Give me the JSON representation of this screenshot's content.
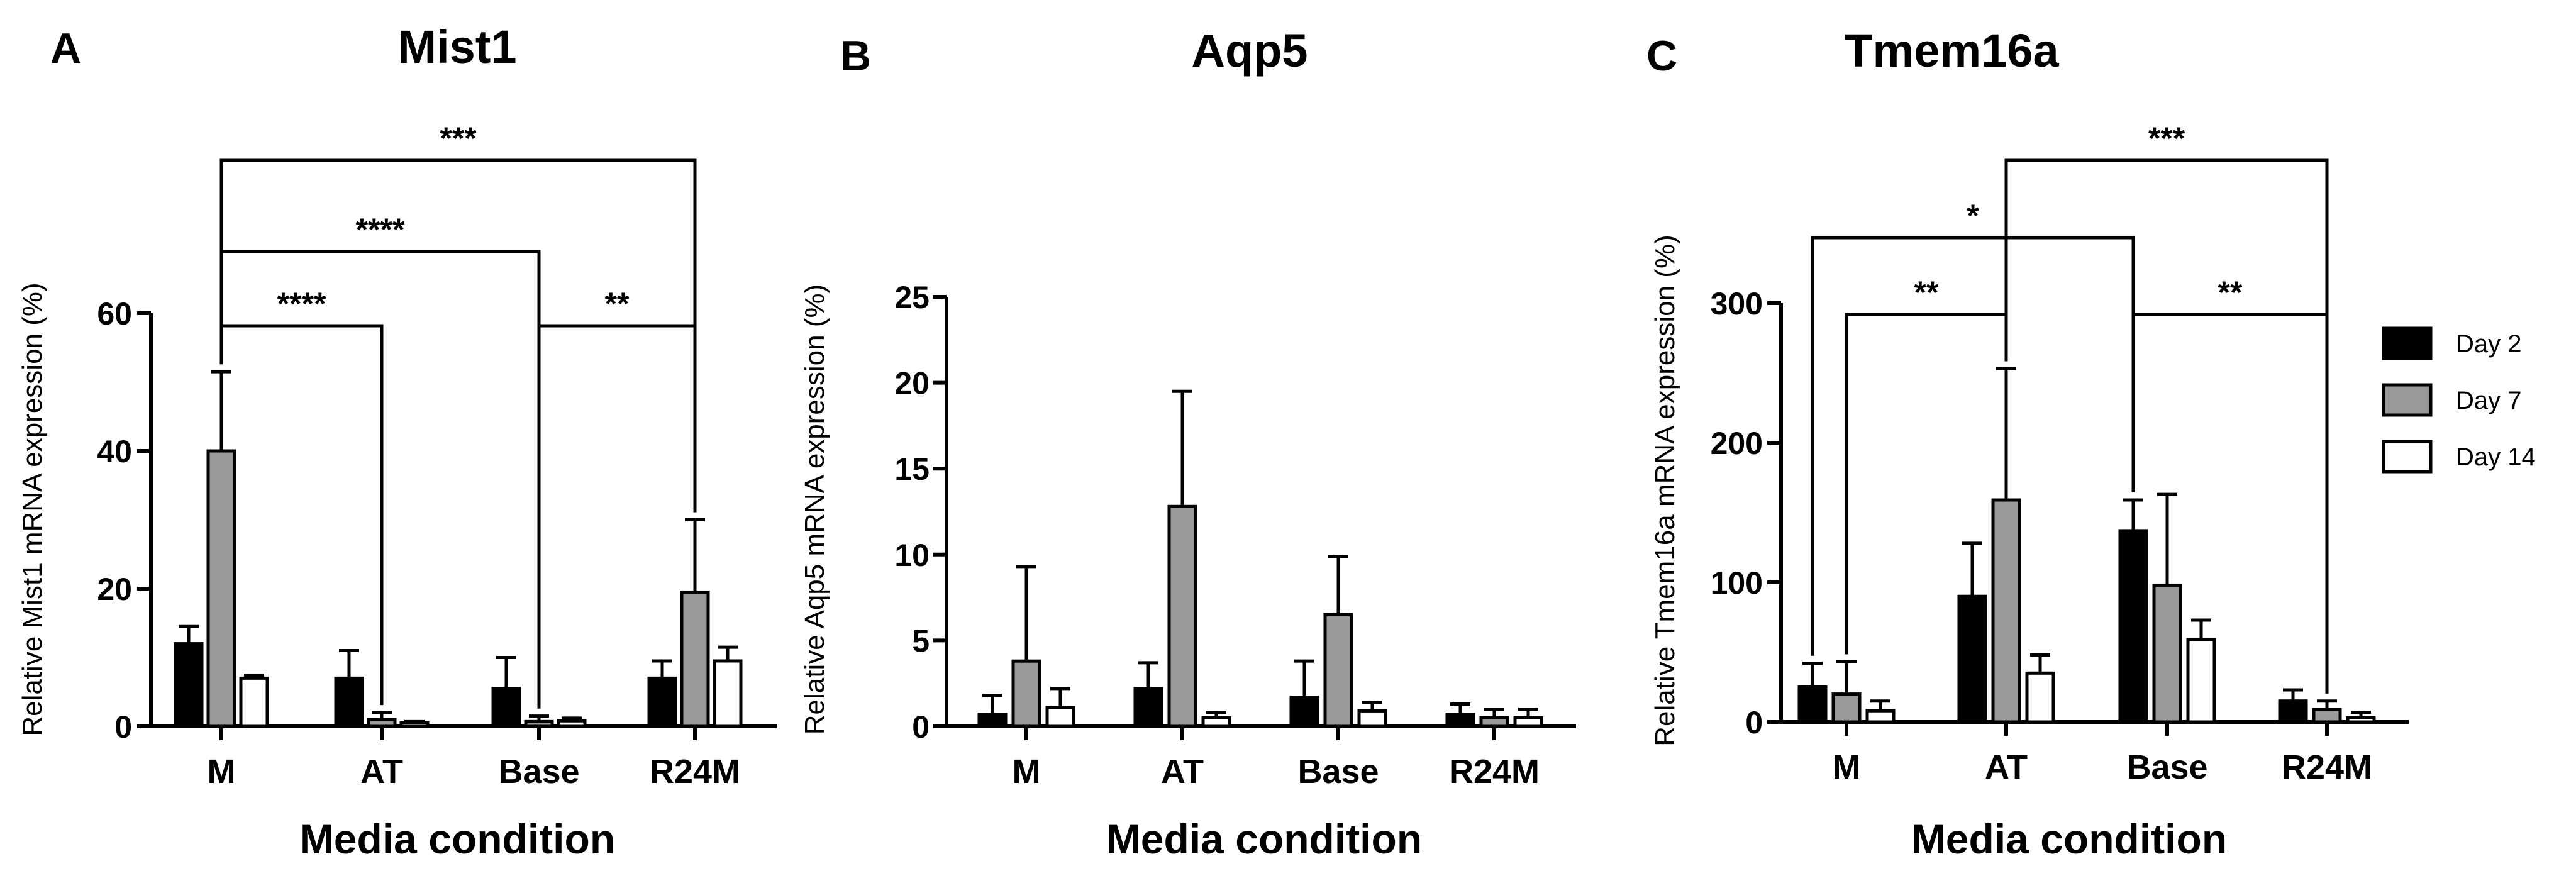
{
  "chart_data": [
    {
      "panel": "A",
      "type": "bar",
      "title": "Mist1",
      "xlabel": "Media condition",
      "ylabel": "Relative Mist1 mRNA expression (%)",
      "categories": [
        "M",
        "AT",
        "Base",
        "R24M"
      ],
      "ylim": [
        0,
        60
      ],
      "yticks": [
        0,
        20,
        40,
        60
      ],
      "series": [
        {
          "name": "Day 2",
          "color": "#000000",
          "values": [
            12,
            7,
            5.5,
            7
          ],
          "errors": [
            2.5,
            4,
            4.5,
            2.5
          ]
        },
        {
          "name": "Day 7",
          "color": "#999999",
          "values": [
            40,
            1,
            0.7,
            19.5
          ],
          "errors": [
            11.5,
            1,
            0.8,
            10.5
          ]
        },
        {
          "name": "Day 14",
          "color": "#ffffff",
          "values": [
            7,
            0.5,
            0.8,
            9.5
          ],
          "errors": [
            0.4,
            0.2,
            0.4,
            2
          ]
        }
      ],
      "annotations": [
        {
          "label": "***",
          "from": [
            0,
            "Day 7"
          ],
          "to": [
            3,
            "Day 7"
          ],
          "level": 1
        },
        {
          "label": "****",
          "from": [
            0,
            "Day 7"
          ],
          "to": [
            2,
            "Day 7"
          ],
          "level": 2
        },
        {
          "label": "****",
          "from": [
            0,
            "Day 7"
          ],
          "to": [
            1,
            "Day 7"
          ],
          "level": 3
        },
        {
          "label": "**",
          "from": [
            2,
            "Day 7"
          ],
          "to": [
            3,
            "Day 7"
          ],
          "level": 3
        }
      ]
    },
    {
      "panel": "B",
      "type": "bar",
      "title": "Aqp5",
      "xlabel": "Media condition",
      "ylabel": "Relative Aqp5 mRNA expression (%)",
      "categories": [
        "M",
        "AT",
        "Base",
        "R24M"
      ],
      "ylim": [
        0,
        25
      ],
      "yticks": [
        0,
        5,
        10,
        15,
        20,
        25
      ],
      "series": [
        {
          "name": "Day 2",
          "color": "#000000",
          "values": [
            0.7,
            2.2,
            1.7,
            0.7
          ],
          "errors": [
            1.1,
            1.5,
            2.1,
            0.6
          ]
        },
        {
          "name": "Day 7",
          "color": "#999999",
          "values": [
            3.8,
            12.8,
            6.5,
            0.5
          ],
          "errors": [
            5.5,
            6.7,
            3.4,
            0.5
          ]
        },
        {
          "name": "Day 14",
          "color": "#ffffff",
          "values": [
            1.1,
            0.5,
            0.9,
            0.5
          ],
          "errors": [
            1.1,
            0.3,
            0.5,
            0.5
          ]
        }
      ],
      "annotations": []
    },
    {
      "panel": "C",
      "type": "bar",
      "title": "Tmem16a",
      "xlabel": "Media condition",
      "ylabel": "Relative Tmem16a mRNA expression (%)",
      "categories": [
        "M",
        "AT",
        "Base",
        "R24M"
      ],
      "ylim": [
        0,
        300
      ],
      "yticks": [
        0,
        100,
        200,
        300
      ],
      "series": [
        {
          "name": "Day 2",
          "color": "#000000",
          "values": [
            25,
            90,
            137,
            15
          ],
          "errors": [
            17,
            38,
            22,
            8
          ]
        },
        {
          "name": "Day 7",
          "color": "#999999",
          "values": [
            20,
            159,
            98,
            9
          ],
          "errors": [
            23,
            94,
            65,
            6
          ]
        },
        {
          "name": "Day 14",
          "color": "#ffffff",
          "values": [
            8,
            35,
            59,
            3
          ],
          "errors": [
            7,
            13,
            14,
            4
          ]
        }
      ],
      "annotations": [
        {
          "label": "***",
          "from": [
            1,
            "Day 7"
          ],
          "to": [
            3,
            "Day 7"
          ],
          "level": 1
        },
        {
          "label": "*",
          "from": [
            0,
            "Day 2"
          ],
          "to": [
            2,
            "Day 2"
          ],
          "level": 2
        },
        {
          "label": "**",
          "from": [
            0,
            "Day 7"
          ],
          "to": [
            1,
            "Day 7"
          ],
          "level": 3
        },
        {
          "label": "**",
          "from": [
            2,
            "Day 2"
          ],
          "to": [
            3,
            "Day 7"
          ],
          "level": 3
        }
      ]
    }
  ],
  "legend": {
    "position": "right",
    "items": [
      {
        "label": "Day 2",
        "color": "#000000"
      },
      {
        "label": "Day 7",
        "color": "#999999"
      },
      {
        "label": "Day 14",
        "color": "#ffffff"
      }
    ]
  }
}
